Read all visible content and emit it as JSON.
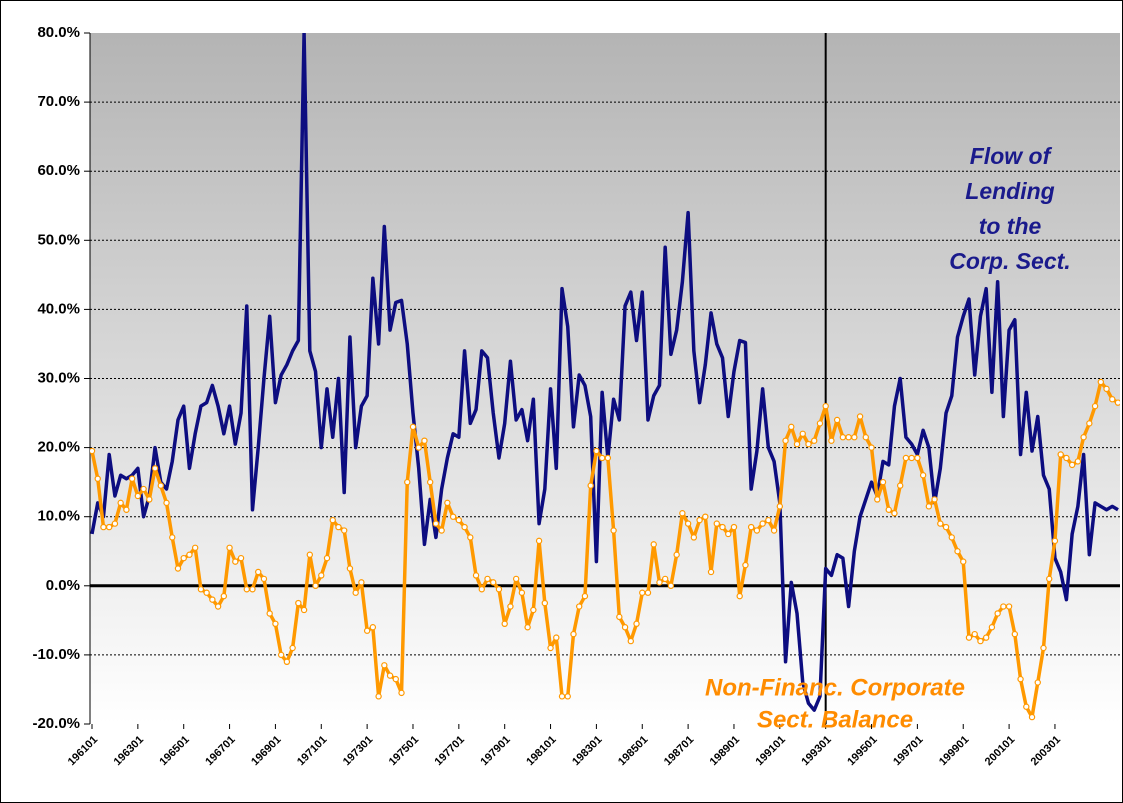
{
  "chart_data": {
    "type": "line",
    "categories": [
      "196101",
      null,
      null,
      null,
      null,
      null,
      null,
      null,
      "196301",
      null,
      null,
      null,
      null,
      null,
      null,
      null,
      "196501",
      null,
      null,
      null,
      null,
      null,
      null,
      null,
      "196701",
      null,
      null,
      null,
      null,
      null,
      null,
      null,
      "196901",
      null,
      null,
      null,
      null,
      null,
      null,
      null,
      "197101",
      null,
      null,
      null,
      null,
      null,
      null,
      null,
      "197301",
      null,
      null,
      null,
      null,
      null,
      null,
      null,
      "197501",
      null,
      null,
      null,
      null,
      null,
      null,
      null,
      "197701",
      null,
      null,
      null,
      null,
      null,
      null,
      null,
      "197901",
      null,
      null,
      null,
      null,
      null,
      null,
      null,
      "198101",
      null,
      null,
      null,
      null,
      null,
      null,
      null,
      "198301",
      null,
      null,
      null,
      null,
      null,
      null,
      null,
      "198501",
      null,
      null,
      null,
      null,
      null,
      null,
      null,
      "198701",
      null,
      null,
      null,
      null,
      null,
      null,
      null,
      "198901",
      null,
      null,
      null,
      null,
      null,
      null,
      null,
      "199101",
      null,
      null,
      null,
      null,
      null,
      null,
      null,
      "199301",
      null,
      null,
      null,
      null,
      null,
      null,
      null,
      "199501",
      null,
      null,
      null,
      null,
      null,
      null,
      null,
      "199701",
      null,
      null,
      null,
      null,
      null,
      null,
      null,
      "199901",
      null,
      null,
      null,
      null,
      null,
      null,
      null,
      "200101",
      null,
      null,
      null,
      null,
      null,
      null,
      null,
      "200301",
      null,
      null,
      null,
      null,
      null,
      null,
      null,
      null,
      null,
      null,
      null
    ],
    "series": [
      {
        "color": "#0d0d80",
        "markers": false,
        "values": [
          7.5,
          12,
          10,
          19,
          13,
          16,
          15.5,
          16,
          17,
          10,
          13,
          20,
          15,
          14,
          18,
          24,
          26,
          17,
          22,
          26,
          26.5,
          29,
          26,
          22,
          26,
          20.5,
          25,
          40.5,
          11,
          20,
          30,
          39,
          26.5,
          30.5,
          32,
          34,
          35.5,
          80,
          34,
          31,
          20,
          28.5,
          21.5,
          30,
          13.5,
          36,
          20,
          26,
          27.5,
          44.5,
          35,
          52,
          37,
          41,
          41.3,
          35,
          25,
          17,
          6,
          12.5,
          7,
          14,
          18.5,
          22,
          21.5,
          34,
          23.5,
          25.5,
          34,
          33,
          25,
          18.5,
          23.5,
          32.5,
          24,
          25.5,
          21,
          27,
          9,
          14,
          28.5,
          17,
          43,
          37.5,
          23,
          30.5,
          29,
          24.5,
          3.5,
          28,
          18.5,
          27,
          24,
          40.5,
          42.5,
          35.5,
          42.5,
          24,
          27.5,
          29,
          49,
          33.5,
          37,
          44,
          54,
          34,
          26.5,
          32,
          39.5,
          35,
          33,
          24.5,
          31,
          35.5,
          35.2,
          14,
          19.5,
          28.5,
          20,
          18,
          12,
          -11,
          0.5,
          -4,
          -14,
          -17,
          -18,
          -16,
          2.5,
          1.5,
          4.5,
          4,
          -3,
          5,
          10,
          12.5,
          15,
          13,
          18,
          17.5,
          26,
          30,
          21.5,
          20.5,
          19,
          22.5,
          20,
          12,
          17,
          25,
          27.5,
          36,
          39,
          41.5,
          30.5,
          39,
          43,
          28,
          44,
          24.5,
          37,
          38.5,
          19,
          28,
          19.5,
          24.5,
          16,
          14,
          4,
          2,
          -2,
          7.5,
          11.5,
          19,
          4.5,
          12,
          11.5,
          11,
          11.5,
          11
        ]
      },
      {
        "color": "#ff9900",
        "markers": true,
        "values": [
          19.5,
          15.5,
          8.5,
          8.5,
          9,
          12,
          11,
          15.5,
          13,
          14,
          12.5,
          17,
          14.5,
          12,
          7,
          2.5,
          4,
          4.5,
          5.5,
          -0.5,
          -1,
          -2,
          -3,
          -1.5,
          5.5,
          3.5,
          4,
          -0.5,
          -0.5,
          2,
          1,
          -4,
          -5.5,
          -10,
          -11,
          -9,
          -2.5,
          -3.5,
          4.5,
          0,
          1.5,
          4,
          9.5,
          8.5,
          8,
          2.5,
          -1,
          0.5,
          -6.5,
          -6,
          -16,
          -11.5,
          -13,
          -13.5,
          -15.5,
          15,
          23,
          20,
          21,
          15,
          9,
          8,
          12,
          10,
          9.5,
          8.5,
          7,
          1.5,
          -0.5,
          1,
          0.5,
          -0.5,
          -5.5,
          -3,
          1,
          -1,
          -6,
          -3.5,
          6.5,
          -2.5,
          -9,
          -7.5,
          -16,
          -16,
          -7,
          -3,
          -1.5,
          14.5,
          19.5,
          18.5,
          18.5,
          8,
          -4.5,
          -6,
          -8,
          -5.5,
          -1,
          -1,
          6,
          0.5,
          1,
          0,
          4.5,
          10.5,
          9,
          7,
          9.5,
          10,
          2,
          9,
          8.5,
          7.5,
          8.5,
          -1.5,
          3,
          8.5,
          8,
          9,
          9.5,
          8,
          11.5,
          21,
          23,
          20.5,
          22,
          20.5,
          21,
          23.5,
          26,
          21,
          24,
          21.5,
          21.5,
          21.5,
          24.5,
          21.5,
          20,
          12.5,
          15,
          11,
          10.5,
          14.5,
          18.5,
          18.5,
          18.5,
          16,
          11.5,
          12.5,
          9,
          8.5,
          7,
          5,
          3.5,
          -7.5,
          -7,
          -8,
          -7.5,
          -6,
          -4,
          -3,
          -3,
          -7,
          -13.5,
          -17.5,
          -19,
          -14,
          -9,
          1,
          6.5,
          19,
          18.5,
          17.5,
          18,
          21.5,
          23.5,
          26,
          29.5,
          28.5,
          27,
          26.5
        ]
      }
    ],
    "ylim": [
      -20,
      80
    ],
    "yticks": [
      {
        "value": -20,
        "label": "-20.0%"
      },
      {
        "value": -10,
        "label": "-10.0%"
      },
      {
        "value": 0,
        "label": "0.0%"
      },
      {
        "value": 10,
        "label": "10.0%"
      },
      {
        "value": 20,
        "label": "20.0%"
      },
      {
        "value": 30,
        "label": "30.0%"
      },
      {
        "value": 40,
        "label": "40.0%"
      },
      {
        "value": 50,
        "label": "50.0%"
      },
      {
        "value": 60,
        "label": "60.0%"
      },
      {
        "value": 70,
        "label": "70.0%"
      },
      {
        "value": 80,
        "label": "80.0%"
      }
    ],
    "grid": true,
    "reference_line_category": "199301",
    "annotations": [
      {
        "series": 0,
        "lines": [
          "Flow of",
          "Lending",
          "to the",
          "Corp. Sect."
        ]
      },
      {
        "series": 1,
        "lines": [
          "Non-Financ. Corporate",
          "Sect. Balance"
        ]
      }
    ]
  }
}
